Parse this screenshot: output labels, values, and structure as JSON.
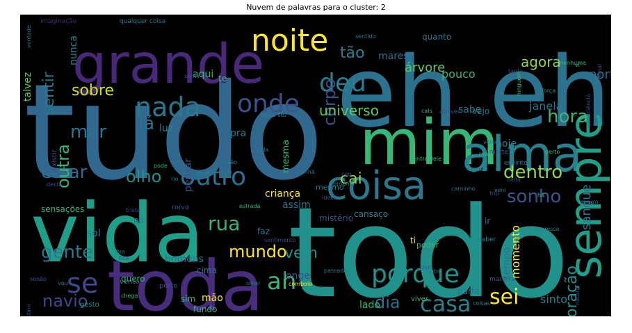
{
  "chart_data": {
    "type": "wordcloud",
    "title": "Nuvem de palavras para o cluster: 2",
    "background": "#000000",
    "palette": {
      "purple": "#482878",
      "blue": "#3b6f8e",
      "steel": "#31688e",
      "teal": "#21918c",
      "green": "#35b779",
      "lime": "#90d743",
      "yellow": "#fde725"
    },
    "words": [
      {
        "text": "tudo",
        "weight": 100,
        "color": "#31688e"
      },
      {
        "text": "todo",
        "weight": 96,
        "color": "#21918c"
      },
      {
        "text": "eh eh",
        "weight": 78,
        "color": "#2c728e"
      },
      {
        "text": "vida",
        "weight": 72,
        "color": "#1f9e89"
      },
      {
        "text": "toda",
        "weight": 62,
        "color": "#472d7b"
      },
      {
        "text": "mim",
        "weight": 58,
        "color": "#35b779"
      },
      {
        "text": "grande",
        "weight": 46,
        "color": "#482878"
      },
      {
        "text": "alma",
        "weight": 42,
        "color": "#26828e"
      },
      {
        "text": "sempre",
        "weight": 40,
        "color": "#1f9e89"
      },
      {
        "text": "coisa",
        "weight": 36,
        "color": "#2a788e"
      },
      {
        "text": "noite",
        "weight": 28,
        "color": "#fde725"
      },
      {
        "text": "se",
        "weight": 26,
        "color": "#3e4989"
      },
      {
        "text": "porque",
        "weight": 24,
        "color": "#21918c"
      },
      {
        "text": "nada",
        "weight": 24,
        "color": "#2a788e"
      },
      {
        "text": "onde",
        "weight": 22,
        "color": "#3b528b"
      },
      {
        "text": "deu",
        "weight": 22,
        "color": "#287d8e"
      },
      {
        "text": "ah",
        "weight": 22,
        "color": "#35b779"
      },
      {
        "text": "outro",
        "weight": 20,
        "color": "#2c728e"
      },
      {
        "text": "casa",
        "weight": 18,
        "color": "#26828e"
      },
      {
        "text": "sei",
        "weight": 18,
        "color": "#fde725"
      },
      {
        "text": "sonho",
        "weight": 16,
        "color": "#3b528b"
      },
      {
        "text": "rua",
        "weight": 16,
        "color": "#35b779"
      },
      {
        "text": "gente",
        "weight": 16,
        "color": "#2a788e"
      },
      {
        "text": "navio",
        "weight": 16,
        "color": "#3e4989"
      },
      {
        "text": "mar",
        "weight": 16,
        "color": "#2c728e"
      },
      {
        "text": "estar",
        "weight": 16,
        "color": "#31688e"
      },
      {
        "text": "olho",
        "weight": 16,
        "color": "#21918c"
      },
      {
        "text": "dia",
        "weight": 15,
        "color": "#2c728e"
      },
      {
        "text": "mundo",
        "weight": 15,
        "color": "#fde725"
      },
      {
        "text": "dentro",
        "weight": 15,
        "color": "#90d743"
      },
      {
        "text": "hora",
        "weight": 14,
        "color": "#35b779"
      },
      {
        "text": "tão",
        "weight": 14,
        "color": "#26828e"
      },
      {
        "text": "sobre",
        "weight": 14,
        "color": "#cde11d"
      },
      {
        "text": "lá",
        "weight": 14,
        "color": "#2c728e"
      },
      {
        "text": "vem",
        "weight": 14,
        "color": "#21918c"
      },
      {
        "text": "corpo",
        "weight": 13,
        "color": "#3b528b"
      },
      {
        "text": "universo",
        "weight": 13,
        "color": "#5ec962"
      },
      {
        "text": "coração",
        "weight": 13,
        "color": "#21918c"
      },
      {
        "text": "outra",
        "weight": 13,
        "color": "#35b779"
      },
      {
        "text": "sentir",
        "weight": 12,
        "color": "#2a788e"
      },
      {
        "text": "cai",
        "weight": 12,
        "color": "#90d743"
      },
      {
        "text": "sangue",
        "weight": 11,
        "color": "#2c728e"
      },
      {
        "text": "árvore",
        "weight": 11,
        "color": "#5ec962"
      },
      {
        "text": "agora",
        "weight": 10,
        "color": "#90d743"
      },
      {
        "text": "verso",
        "weight": 9,
        "color": "#35b779"
      },
      {
        "text": "porta",
        "weight": 9,
        "color": "#2c728e"
      },
      {
        "text": "sinto",
        "weight": 9,
        "color": "#26828e"
      },
      {
        "text": "momento",
        "weight": 9,
        "color": "#fde725"
      },
      {
        "text": "pouco",
        "weight": 9,
        "color": "#35b779"
      },
      {
        "text": "mares",
        "weight": 9,
        "color": "#2c728e"
      },
      {
        "text": "aqui",
        "weight": 9,
        "color": "#35b779"
      },
      {
        "text": "janela",
        "weight": 9,
        "color": "#2a788e"
      },
      {
        "text": "criança",
        "weight": 9,
        "color": "#fde725"
      },
      {
        "text": "assim",
        "weight": 9,
        "color": "#2c728e"
      },
      {
        "text": "hoje",
        "weight": 9,
        "color": "#26828e"
      },
      {
        "text": "pra",
        "weight": 9,
        "color": "#2a788e"
      },
      {
        "text": "homens",
        "weight": 8,
        "color": "#2c728e"
      },
      {
        "text": "tempo",
        "weight": 8,
        "color": "#2c728e"
      },
      {
        "text": "sabe",
        "weight": 8,
        "color": "#2a788e"
      },
      {
        "text": "longe",
        "weight": 8,
        "color": "#3b528b"
      },
      {
        "text": "menos",
        "weight": 8,
        "color": "#35b779"
      },
      {
        "text": "mão",
        "weight": 8,
        "color": "#fde725"
      },
      {
        "text": "lado",
        "weight": 8,
        "color": "#35b779"
      },
      {
        "text": "luz",
        "weight": 8,
        "color": "#26828e"
      },
      {
        "text": "sol",
        "weight": 8,
        "color": "#2a788e"
      },
      {
        "text": "nunca",
        "weight": 8,
        "color": "#26828e"
      },
      {
        "text": "talvez",
        "weight": 8,
        "color": "#5ec962"
      },
      {
        "text": "pensar",
        "weight": 8,
        "color": "#3b528b"
      },
      {
        "text": "mesma",
        "weight": 7,
        "color": "#35b779"
      },
      {
        "text": "te",
        "weight": 7,
        "color": "#35b779"
      },
      {
        "text": "cabeça",
        "weight": 7,
        "color": "#5ec962"
      },
      {
        "text": "qualquer",
        "weight": 7,
        "color": "#35b779"
      },
      {
        "text": "parte",
        "weight": 6,
        "color": "#2a788e"
      },
      {
        "text": "fundo",
        "weight": 6,
        "color": "#35b779"
      },
      {
        "text": "sim",
        "weight": 6,
        "color": "#35b779"
      },
      {
        "text": "vejo",
        "weight": 6,
        "color": "#2a788e"
      },
      {
        "text": "ti",
        "weight": 6,
        "color": "#fde725"
      },
      {
        "text": "faz",
        "weight": 6,
        "color": "#2a788e"
      },
      {
        "text": "quero",
        "weight": 6,
        "color": "#35b779"
      },
      {
        "text": "cima",
        "weight": 6,
        "color": "#2a788e"
      },
      {
        "text": "ir",
        "weight": 6,
        "color": "#2c728e"
      },
      {
        "text": "mistério",
        "weight": 6,
        "color": "#3b528b"
      },
      {
        "text": "cansaço",
        "weight": 6,
        "color": "#26828e"
      },
      {
        "text": "sensações",
        "weight": 5,
        "color": "#35b779"
      },
      {
        "text": "quanto",
        "weight": 5,
        "color": "#2a788e"
      },
      {
        "text": "poder",
        "weight": 5,
        "color": "#35b779"
      },
      {
        "text": "mesmo",
        "weight": 5,
        "color": "#2a788e"
      },
      {
        "text": "existir",
        "weight": 4,
        "color": "#3b528b"
      },
      {
        "text": "pó",
        "weight": 4,
        "color": "#26828e"
      },
      {
        "text": "raiva",
        "weight": 4,
        "color": "#3b528b"
      },
      {
        "text": "viver",
        "weight": 4,
        "color": "#35b779"
      },
      {
        "text": "vento",
        "weight": 4,
        "color": "#2a788e"
      },
      {
        "text": "porto",
        "weight": 4,
        "color": "#3b528b"
      },
      {
        "text": "gesto",
        "weight": 4,
        "color": "#21918c"
      },
      {
        "text": "espírito",
        "weight": 4,
        "color": "#2a788e"
      },
      {
        "text": "morte",
        "weight": 4,
        "color": "#3b528b"
      },
      {
        "text": "maneira",
        "weight": 4,
        "color": "#3b528b"
      },
      {
        "text": "água",
        "weight": 4,
        "color": "#2a788e"
      },
      {
        "text": "terra",
        "weight": 4,
        "color": "#35b779"
      },
      {
        "text": "saber",
        "weight": 4,
        "color": "#26828e"
      },
      {
        "text": "imaginação",
        "weight": 3,
        "color": "#482878"
      },
      {
        "text": "qualquer coisa",
        "weight": 3,
        "color": "#2a788e"
      },
      {
        "text": "vontade",
        "weight": 3,
        "color": "#2c728e"
      },
      {
        "text": "outra vez",
        "weight": 3,
        "color": "#26828e"
      },
      {
        "text": "através",
        "weight": 3,
        "color": "#3b528b"
      },
      {
        "text": "força",
        "weight": 3,
        "color": "#26828e"
      },
      {
        "text": "tanto",
        "weight": 3,
        "color": "#3b528b"
      },
      {
        "text": "ninguém",
        "weight": 3,
        "color": "#35b779"
      },
      {
        "text": "consciência",
        "weight": 3,
        "color": "#3b528b"
      },
      {
        "text": "afinal",
        "weight": 3,
        "color": "#3b528b"
      },
      {
        "text": "comboio",
        "weight": 3,
        "color": "#fde725"
      },
      {
        "text": "rio",
        "weight": 3,
        "color": "#2a788e"
      },
      {
        "text": "sentido",
        "weight": 3,
        "color": "#2a788e"
      },
      {
        "text": "estrada",
        "weight": 3,
        "color": "#35b779"
      },
      {
        "text": "ideia",
        "weight": 3,
        "color": "#3b528b"
      },
      {
        "text": "próprio",
        "weight": 3,
        "color": "#26828e"
      },
      {
        "text": "passado",
        "weight": 3,
        "color": "#2a788e"
      },
      {
        "text": "sentimento",
        "weight": 3,
        "color": "#3b528b"
      },
      {
        "text": "triste",
        "weight": 3,
        "color": "#3b528b"
      },
      {
        "text": "manhã",
        "weight": 3,
        "color": "#2a788e"
      },
      {
        "text": "ceu",
        "weight": 3,
        "color": "#3b528b"
      },
      {
        "text": "dentro dele",
        "weight": 3,
        "color": "#35b779"
      },
      {
        "text": "caminho",
        "weight": 3,
        "color": "#2a788e"
      },
      {
        "text": "cidade",
        "weight": 3,
        "color": "#2a788e"
      },
      {
        "text": "destino",
        "weight": 3,
        "color": "#3b528b"
      },
      {
        "text": "coisas",
        "weight": 3,
        "color": "#26828e"
      },
      {
        "text": "nenhuma",
        "weight": 3,
        "color": "#35b779"
      },
      {
        "text": "fim",
        "weight": 3,
        "color": "#26828e"
      },
      {
        "text": "senão",
        "weight": 3,
        "color": "#3b528b"
      },
      {
        "text": "vou",
        "weight": 3,
        "color": "#26828e"
      },
      {
        "text": "chega",
        "weight": 3,
        "color": "#35b779"
      },
      {
        "text": "desta",
        "weight": 3,
        "color": "#3b528b"
      },
      {
        "text": "velho",
        "weight": 3,
        "color": "#2a788e"
      },
      {
        "text": "perto",
        "weight": 3,
        "color": "#35b779"
      },
      {
        "text": "nada",
        "weight": 3,
        "color": "#3b528b"
      },
      {
        "text": "escuro",
        "weight": 3,
        "color": "#2a788e"
      },
      {
        "text": "natural",
        "weight": 3,
        "color": "#3b528b"
      },
      {
        "text": "ninguém",
        "weight": 3,
        "color": "#26828e"
      },
      {
        "text": "real",
        "weight": 3,
        "color": "#35b779"
      },
      {
        "text": "olhar",
        "weight": 3,
        "color": "#2a788e"
      },
      {
        "text": "creio",
        "weight": 3,
        "color": "#3b528b"
      },
      {
        "text": "depressa",
        "weight": 3,
        "color": "#26828e"
      },
      {
        "text": "vi",
        "weight": 3,
        "color": "#35b779"
      },
      {
        "text": "nuvem",
        "weight": 3,
        "color": "#2a788e"
      },
      {
        "text": "fica",
        "weight": 3,
        "color": "#3b528b"
      },
      {
        "text": "cais",
        "weight": 3,
        "color": "#35b779"
      },
      {
        "text": "veio",
        "weight": 3,
        "color": "#2a788e"
      },
      {
        "text": "frio",
        "weight": 3,
        "color": "#3b528b"
      },
      {
        "text": "entre",
        "weight": 3,
        "color": "#26828e"
      },
      {
        "text": "razão",
        "weight": 3,
        "color": "#2a788e"
      },
      {
        "text": "pode",
        "weight": 3,
        "color": "#35b779"
      },
      {
        "text": "sentir",
        "weight": 3,
        "color": "#3b528b"
      },
      {
        "text": "dormir",
        "weight": 3,
        "color": "#26828e"
      },
      {
        "text": "cada",
        "weight": 3,
        "color": "#2a788e"
      },
      {
        "text": "há",
        "weight": 3,
        "color": "#35b779"
      }
    ]
  }
}
